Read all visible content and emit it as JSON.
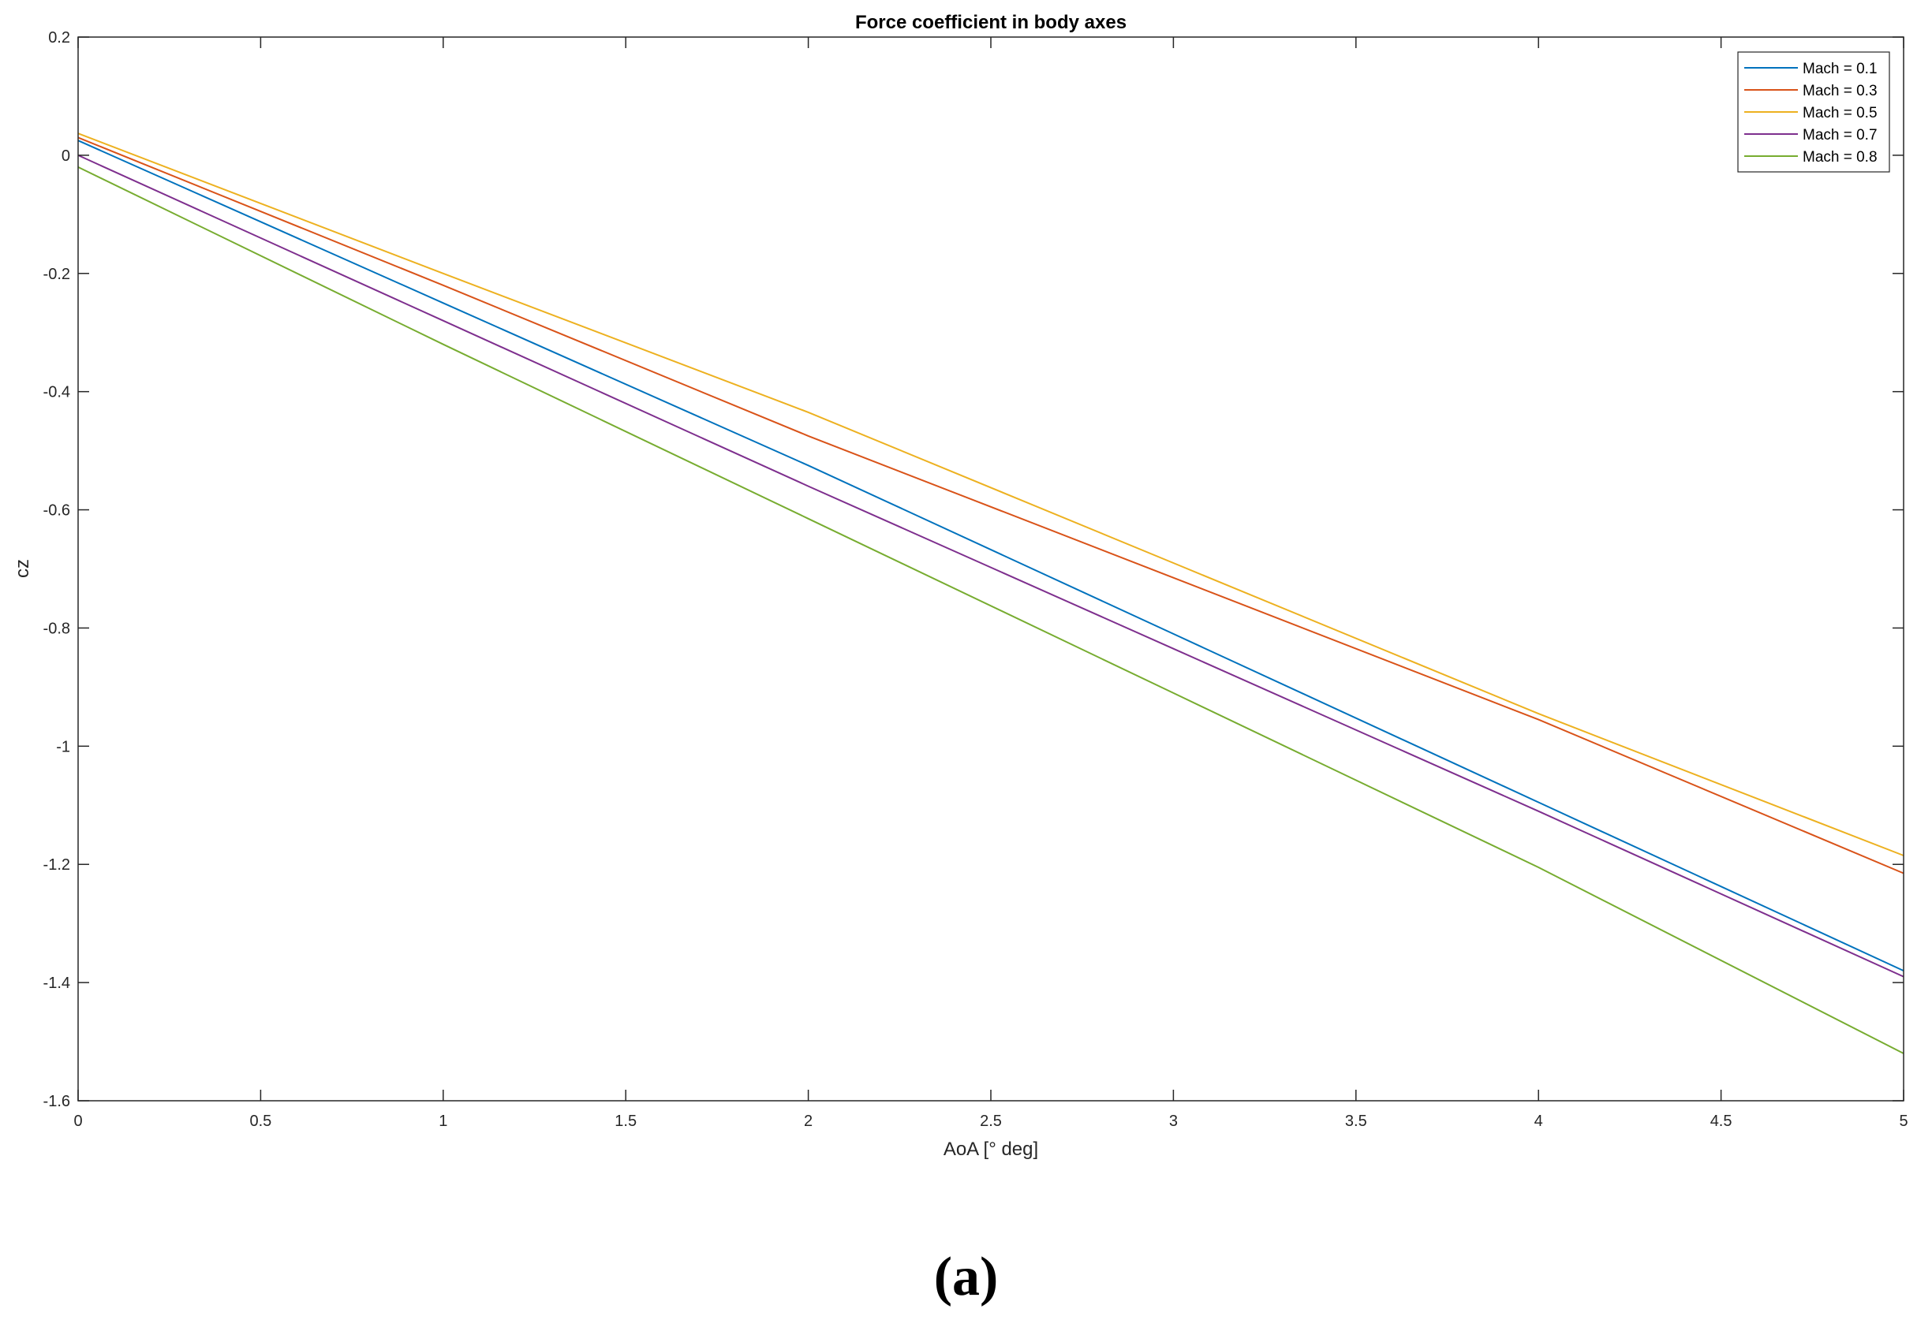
{
  "caption": "(a)",
  "chart_data": {
    "type": "line",
    "title": "Force coefficient in body axes",
    "xlabel": "AoA [° deg]",
    "ylabel": "cz",
    "xlim": [
      0,
      5
    ],
    "ylim": [
      -1.6,
      0.2
    ],
    "xticks": [
      0,
      0.5,
      1,
      1.5,
      2,
      2.5,
      3,
      3.5,
      4,
      4.5,
      5
    ],
    "xtick_labels": [
      "0",
      "0.5",
      "1",
      "1.5",
      "2",
      "2.5",
      "3",
      "3.5",
      "4",
      "4.5",
      "5"
    ],
    "yticks": [
      0.2,
      0,
      -0.2,
      -0.4,
      -0.6,
      -0.8,
      -1,
      -1.2,
      -1.4,
      -1.6
    ],
    "ytick_labels": [
      "0.2",
      "0",
      "-0.2",
      "-0.4",
      "-0.6",
      "-0.8",
      "-1",
      "-1.2",
      "-1.4",
      "-1.6"
    ],
    "grid": false,
    "legend_position": "top-right",
    "x": [
      0,
      1,
      2,
      3,
      4,
      5
    ],
    "series": [
      {
        "name": "Mach = 0.1",
        "color": "#0072BD",
        "values": [
          0.025,
          -0.25,
          -0.525,
          -0.81,
          -1.095,
          -1.38
        ]
      },
      {
        "name": "Mach = 0.3",
        "color": "#D95319",
        "values": [
          0.03,
          -0.22,
          -0.475,
          -0.715,
          -0.955,
          -1.215
        ]
      },
      {
        "name": "Mach = 0.5",
        "color": "#EDB120",
        "values": [
          0.037,
          -0.2,
          -0.435,
          -0.69,
          -0.945,
          -1.185
        ]
      },
      {
        "name": "Mach = 0.7",
        "color": "#7E2F8E",
        "values": [
          0.0,
          -0.28,
          -0.56,
          -0.835,
          -1.11,
          -1.39
        ]
      },
      {
        "name": "Mach = 0.8",
        "color": "#77AC30",
        "values": [
          -0.02,
          -0.32,
          -0.615,
          -0.91,
          -1.205,
          -1.52
        ]
      }
    ]
  }
}
